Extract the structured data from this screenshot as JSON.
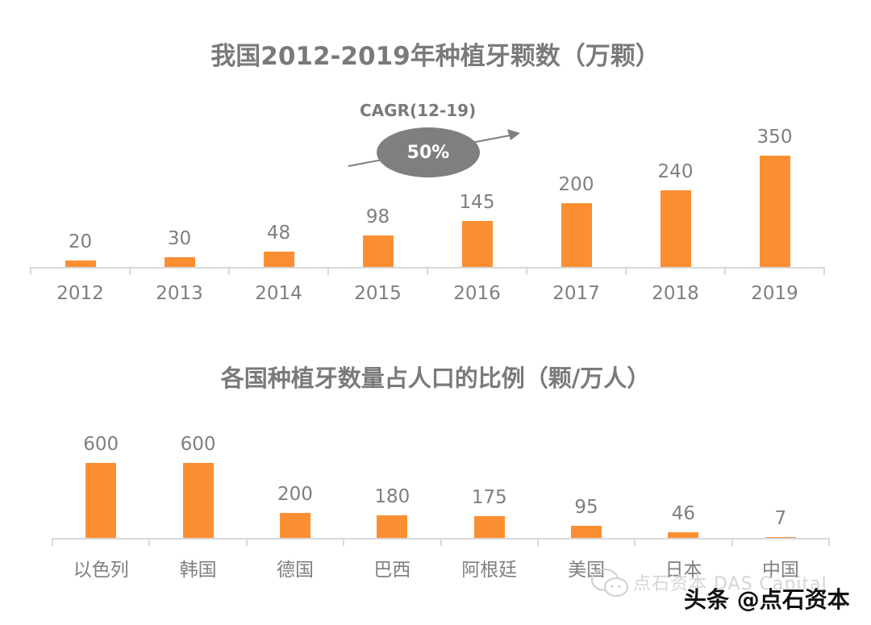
{
  "chart_data": [
    {
      "type": "bar",
      "title": "我国2012-2019年种植牙颗数（万颗）",
      "xlabel": "",
      "ylabel": "万颗",
      "categories": [
        "2012",
        "2013",
        "2014",
        "2015",
        "2016",
        "2017",
        "2018",
        "2019"
      ],
      "values": [
        20,
        30,
        48,
        98,
        145,
        200,
        240,
        350
      ],
      "data_labels": [
        "20",
        "30",
        "48",
        "98",
        "145",
        "200",
        "240",
        "350"
      ],
      "ylim": [
        0,
        350
      ],
      "grid": false,
      "bar_color": "#fb8f32",
      "annotations": [
        {
          "label": "CAGR(12-19)",
          "value": "50%",
          "shape": "ellipse-with-upward-arrow",
          "color": "#7f7f7f"
        }
      ]
    },
    {
      "type": "bar",
      "title": "各国种植牙数量占人口的比例（颗/万人）",
      "xlabel": "",
      "ylabel": "颗/万人",
      "categories": [
        "以色列",
        "韩国",
        "德国",
        "巴西",
        "阿根廷",
        "美国",
        "日本",
        "中国"
      ],
      "values": [
        600,
        600,
        200,
        180,
        175,
        95,
        46,
        7
      ],
      "data_labels": [
        "600",
        "600",
        "200",
        "180",
        "175",
        "95",
        "46",
        "7"
      ],
      "ylim": [
        0,
        600
      ],
      "grid": false,
      "bar_color": "#fb8f32"
    }
  ],
  "annotation": {
    "cagr_title": "CAGR(12-19)",
    "cagr_value": "50%"
  },
  "watermark": {
    "wechat_text": "点石资本 DAS Capital",
    "toutiao_text": "头条 @点石资本"
  }
}
